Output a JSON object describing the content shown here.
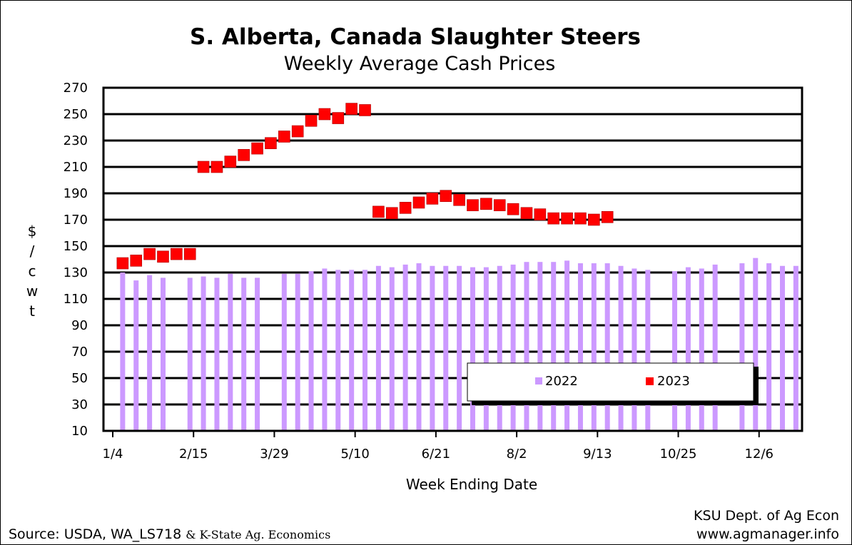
{
  "chart_data": {
    "type": "bar",
    "title": "S. Alberta, Canada Slaughter Steers",
    "subtitle": "Weekly Average Cash Prices",
    "ylabel": "$/cwt",
    "ylabel_chars": [
      "$",
      "/",
      "c",
      "w",
      "t"
    ],
    "xlabel": "Week Ending Date",
    "ylim": [
      10,
      270
    ],
    "yticks": [
      10,
      30,
      50,
      70,
      90,
      110,
      130,
      150,
      170,
      190,
      210,
      230,
      250,
      270
    ],
    "xticks": [
      {
        "label": "1/4",
        "week": 0
      },
      {
        "label": "2/15",
        "week": 6
      },
      {
        "label": "3/29",
        "week": 12
      },
      {
        "label": "5/10",
        "week": 18
      },
      {
        "label": "6/21",
        "week": 24
      },
      {
        "label": "8/2",
        "week": 30
      },
      {
        "label": "9/13",
        "week": 36
      },
      {
        "label": "10/25",
        "week": 42
      },
      {
        "label": "12/6",
        "week": 48
      }
    ],
    "grid": true,
    "legend_position": "bottom-right",
    "series": [
      {
        "name": "2022",
        "type": "bar",
        "color": "#cc99ff",
        "x": [
          1,
          2,
          3,
          4,
          6,
          7,
          8,
          9,
          10,
          11,
          13,
          14,
          15,
          16,
          17,
          18,
          19,
          20,
          21,
          22,
          23,
          24,
          25,
          26,
          27,
          28,
          29,
          30,
          31,
          32,
          33,
          34,
          35,
          36,
          37,
          38,
          39,
          40,
          42,
          43,
          44,
          45,
          47,
          48,
          49,
          50,
          51
        ],
        "values": [
          130,
          124,
          128,
          126,
          126,
          127,
          126,
          129,
          126,
          126,
          129,
          129,
          131,
          133,
          132,
          132,
          132,
          135,
          134,
          136,
          137,
          135,
          135,
          135,
          134,
          134,
          135,
          136,
          138,
          138,
          138,
          139,
          137,
          137,
          137,
          135,
          133,
          132,
          131,
          134,
          133,
          136,
          137,
          141,
          137,
          135,
          135
        ]
      },
      {
        "name": "2023",
        "type": "scatter",
        "color": "#ff0000",
        "x": [
          1,
          2,
          3,
          4,
          5,
          6,
          7,
          8,
          9,
          10,
          11,
          12,
          13,
          14,
          15,
          16,
          17,
          18,
          19,
          20,
          21,
          22,
          23,
          24,
          25,
          26,
          27,
          28,
          29,
          30,
          31,
          32,
          33,
          34,
          35,
          36,
          37
        ],
        "values": [
          137,
          139,
          144,
          142,
          144,
          144,
          210,
          210,
          214,
          219,
          224,
          228,
          233,
          237,
          245,
          250,
          247,
          254,
          253,
          176,
          175,
          179,
          183,
          186,
          188,
          185,
          181,
          182,
          181,
          178,
          175,
          174,
          171,
          171,
          171,
          170,
          172
        ]
      }
    ]
  },
  "source_text": "Source:  USDA, WA_LS718",
  "source_extra": "& K-State Ag. Economics",
  "credit_line1": "KSU Dept. of Ag Econ",
  "credit_line2": "www.agmanager.info"
}
